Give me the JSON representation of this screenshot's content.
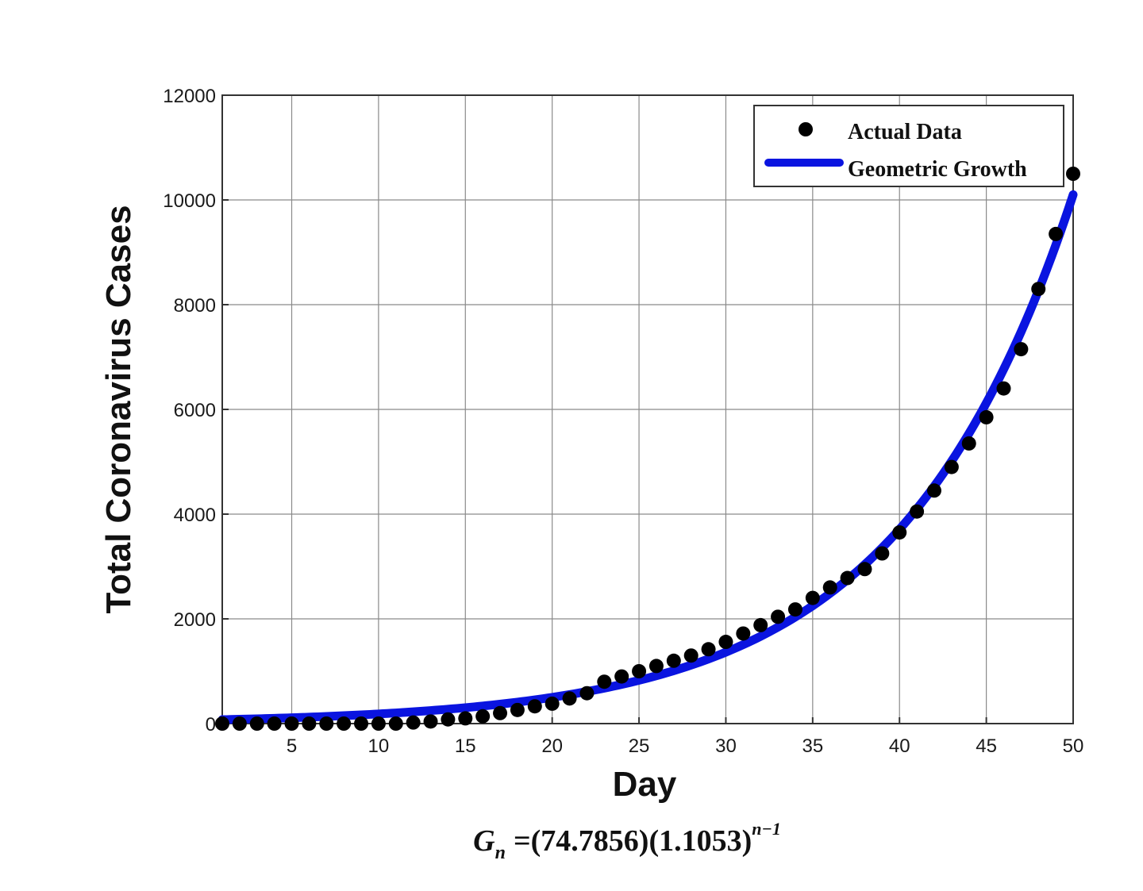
{
  "chart_data": {
    "type": "line",
    "xlabel": "Day",
    "ylabel": "Total Coronavirus Cases",
    "xlim": [
      1,
      50
    ],
    "ylim": [
      0,
      12000
    ],
    "x_ticks": [
      5,
      10,
      15,
      20,
      25,
      30,
      35,
      40,
      45,
      50
    ],
    "y_ticks": [
      0,
      2000,
      4000,
      6000,
      8000,
      10000,
      12000
    ],
    "grid": true,
    "legend_position": "top-right",
    "series": [
      {
        "name": "Actual Data",
        "style": "markers",
        "color": "#000000",
        "x": [
          1,
          2,
          3,
          4,
          5,
          6,
          7,
          8,
          9,
          10,
          11,
          12,
          13,
          14,
          15,
          16,
          17,
          18,
          19,
          20,
          21,
          22,
          23,
          24,
          25,
          26,
          27,
          28,
          29,
          30,
          31,
          32,
          33,
          34,
          35,
          36,
          37,
          38,
          39,
          40,
          41,
          42,
          43,
          44,
          45,
          46,
          47,
          48,
          49,
          50
        ],
        "y": [
          0,
          0,
          0,
          0,
          0,
          0,
          0,
          0,
          0,
          0,
          0,
          20,
          40,
          80,
          100,
          140,
          200,
          260,
          330,
          380,
          480,
          580,
          800,
          900,
          1000,
          1100,
          1200,
          1300,
          1420,
          1560,
          1720,
          1880,
          2040,
          2180,
          2400,
          2600,
          2780,
          2950,
          3250,
          3650,
          4050,
          4450,
          4900,
          5350,
          5850,
          6400,
          7150,
          8300,
          9350,
          10500
        ]
      },
      {
        "name": "Geometric Growth",
        "style": "line",
        "color": "#0a14e0",
        "formula_base": 74.7856,
        "formula_ratio": 1.1053
      }
    ],
    "formula": {
      "lhs": "G",
      "lhs_sub": "n",
      "eq": "=",
      "factor1": "(74.7856)",
      "factor2": "(1.1053)",
      "exponent": "n−1"
    }
  }
}
